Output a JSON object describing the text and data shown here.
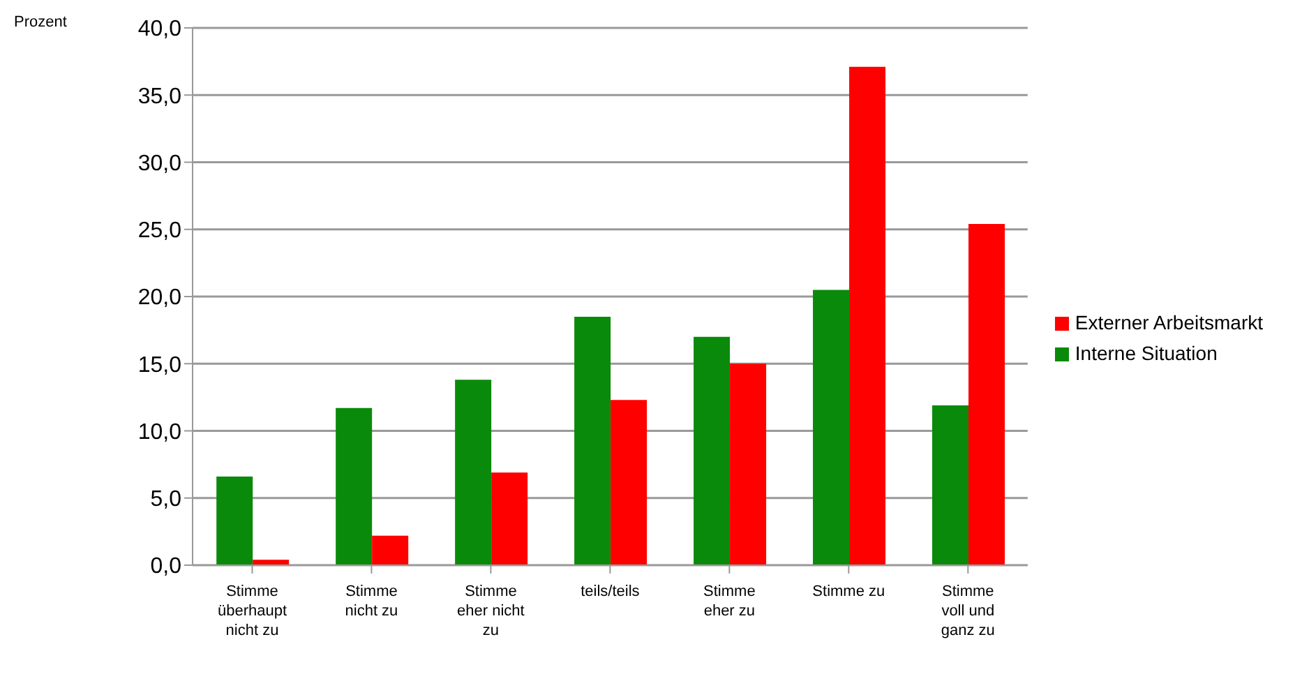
{
  "chart_data": {
    "type": "bar",
    "ylabel": "Prozent",
    "categories": [
      "Stimme überhaupt nicht zu",
      "Stimme nicht zu",
      "Stimme eher nicht zu",
      "teils/teils",
      "Stimme eher zu",
      "Stimme zu",
      "Stimme voll und ganz zu"
    ],
    "series": [
      {
        "name": "Interne Situation",
        "color": "#0a8a0a",
        "values": [
          6.6,
          11.7,
          13.8,
          18.5,
          17.0,
          20.5,
          11.9
        ]
      },
      {
        "name": "Externer Arbeitsmarkt",
        "color": "#ff0000",
        "values": [
          0.4,
          2.2,
          6.9,
          12.3,
          15.0,
          37.1,
          25.4
        ]
      }
    ],
    "ylim": [
      0,
      40
    ],
    "yticks": [
      {
        "value": 0,
        "label": "0,0"
      },
      {
        "value": 5,
        "label": "5,0"
      },
      {
        "value": 10,
        "label": "10,0"
      },
      {
        "value": 15,
        "label": "15,0"
      },
      {
        "value": 20,
        "label": "20,0"
      },
      {
        "value": 25,
        "label": "25,0"
      },
      {
        "value": 30,
        "label": "30,0"
      },
      {
        "value": 35,
        "label": "35,0"
      },
      {
        "value": 40,
        "label": "40,0"
      }
    ],
    "grid": "y",
    "legend": "right"
  }
}
